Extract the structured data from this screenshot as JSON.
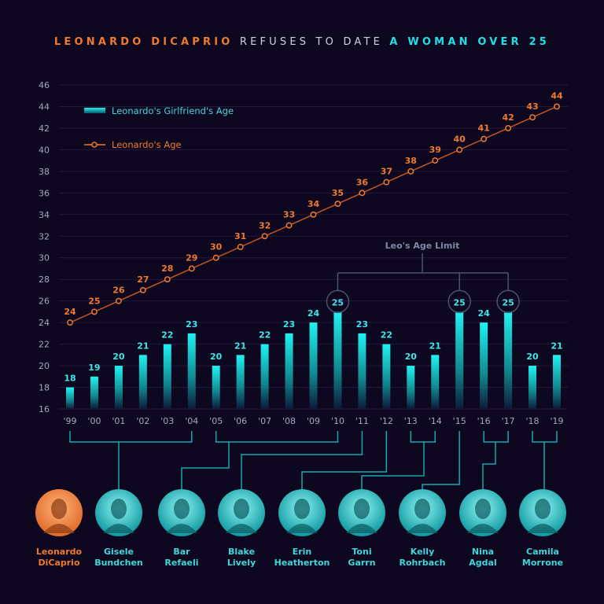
{
  "title": {
    "part1": "LEONARDO DICAPRIO",
    "part2": " REFUSES TO DATE ",
    "part3": "A WOMAN OVER 25"
  },
  "colors": {
    "background": "#0d0720",
    "girlfriend": "#1fe0e6",
    "leo": "#f07a2c",
    "grid": "#221a3a"
  },
  "chart_data": {
    "type": "bar+line",
    "categories": [
      "'99",
      "'00",
      "'01",
      "'02",
      "'03",
      "'04",
      "'05",
      "'06",
      "'07",
      "'08",
      "'09",
      "'10",
      "'11",
      "'12",
      "'13",
      "'14",
      "'15",
      "'16",
      "'17",
      "'18",
      "'19"
    ],
    "series": [
      {
        "name": "Leonardo's Girlfriend's Age",
        "type": "bar",
        "values": [
          18,
          19,
          20,
          21,
          22,
          23,
          20,
          21,
          22,
          23,
          24,
          25,
          23,
          22,
          20,
          21,
          25,
          24,
          25,
          20,
          21
        ]
      },
      {
        "name": "Leonardo's Age",
        "type": "line",
        "values": [
          24,
          25,
          26,
          27,
          28,
          29,
          30,
          31,
          32,
          33,
          34,
          35,
          36,
          37,
          38,
          39,
          40,
          41,
          42,
          43,
          44
        ]
      }
    ],
    "ylim": [
      16,
      46
    ],
    "yticks": [
      16,
      18,
      20,
      22,
      24,
      26,
      28,
      30,
      32,
      34,
      36,
      38,
      40,
      42,
      44,
      46
    ],
    "grid": true,
    "legend": "top-left",
    "annotation": "Leo's Age Limit",
    "annotated_categories": [
      "'10",
      "'15",
      "'17"
    ]
  },
  "people": [
    {
      "name1": "Leonardo",
      "name2": "DiCaprio",
      "leo": true
    },
    {
      "name1": "Gisele",
      "name2": "Bundchen"
    },
    {
      "name1": "Bar",
      "name2": "Refaeli"
    },
    {
      "name1": "Blake",
      "name2": "Lively"
    },
    {
      "name1": "Erin",
      "name2": "Heatherton"
    },
    {
      "name1": "Toni",
      "name2": "Garrn"
    },
    {
      "name1": "Kelly",
      "name2": "Rohrbach"
    },
    {
      "name1": "Nina",
      "name2": "Agdal"
    },
    {
      "name1": "Camila",
      "name2": "Morrone"
    }
  ]
}
